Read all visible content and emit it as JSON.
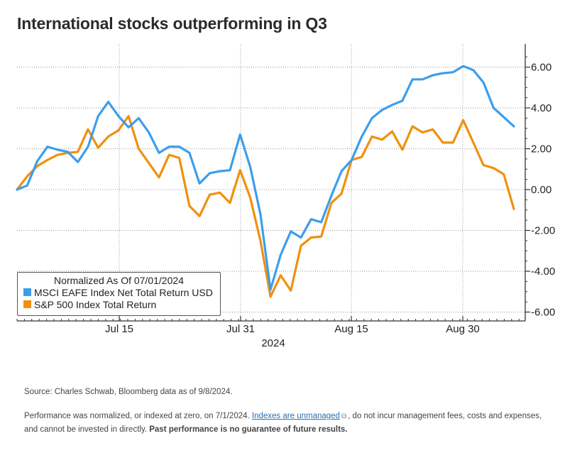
{
  "title": "International stocks outperforming in Q3",
  "chart_data": {
    "type": "line",
    "x_ticks": [
      "Jul 15",
      "Jul 31",
      "Aug 15",
      "Aug 30"
    ],
    "year_label": "2024",
    "ylim": [
      -6.0,
      6.5
    ],
    "y_ticks": [
      "6.00",
      "4.00",
      "2.00",
      "0.00",
      "-2.00",
      "-4.00",
      "-6.00"
    ],
    "y_tick_values": [
      6,
      4,
      2,
      0,
      -2,
      -4,
      -6
    ],
    "grid": true,
    "legend_title": "Normalized As Of 07/01/2024",
    "legend_placement": "bottom-left",
    "series": [
      {
        "name": "MSCI EAFE Index Net Total Return USD",
        "color": "#3b9eee",
        "values": [
          0.0,
          0.2,
          1.4,
          2.1,
          1.95,
          1.85,
          1.35,
          2.1,
          3.6,
          4.3,
          3.6,
          3.05,
          3.5,
          2.8,
          1.8,
          2.1,
          2.1,
          1.8,
          0.3,
          0.8,
          0.9,
          0.95,
          2.7,
          1.1,
          -1.2,
          -4.9,
          -3.2,
          -2.05,
          -2.35,
          -1.45,
          -1.6,
          -0.3,
          0.9,
          1.45,
          2.6,
          3.5,
          3.9,
          4.15,
          4.35,
          5.4,
          5.4,
          5.6,
          5.7,
          5.75,
          6.05,
          5.85,
          5.25,
          4.0,
          3.55,
          3.1
        ]
      },
      {
        "name": "S&P 500 Index Total Return",
        "color": "#f0900e",
        "values": [
          0.0,
          0.65,
          1.15,
          1.45,
          1.7,
          1.8,
          1.85,
          2.95,
          2.05,
          2.6,
          2.9,
          3.6,
          2.0,
          1.3,
          0.6,
          1.7,
          1.55,
          -0.8,
          -1.3,
          -0.25,
          -0.15,
          -0.65,
          0.95,
          -0.4,
          -2.5,
          -5.25,
          -4.2,
          -4.95,
          -2.75,
          -2.35,
          -2.3,
          -0.65,
          -0.2,
          1.45,
          1.6,
          2.6,
          2.45,
          2.85,
          1.95,
          3.1,
          2.8,
          2.95,
          2.3,
          2.3,
          3.4,
          2.3,
          1.2,
          1.05,
          0.75,
          -0.95
        ]
      }
    ]
  },
  "footnotes": {
    "source": "Source: Charles Schwab, Bloomberg data as of 9/8/2024.",
    "line2_a": "Performance was normalized, or indexed at zero, on 7/1/2024. ",
    "link": "Indexes are unmanaged",
    "line2_b": ", do not incur management fees, costs and expenses,",
    "line3_a": "and cannot be invested in directly. ",
    "line3_bold": "Past performance is no guarantee of future results."
  }
}
